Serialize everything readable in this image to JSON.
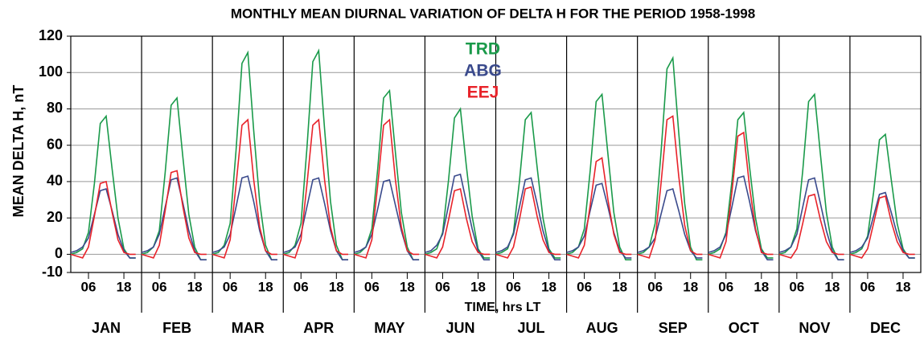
{
  "chart_data": {
    "type": "line",
    "title": "MONTHLY MEAN DIURNAL VARIATION OF DELTA H FOR THE PERIOD 1958-1998",
    "y_label": "MEAN DELTA H, nT",
    "x_label": "TIME, hrs LT",
    "panels": [
      "JAN",
      "FEB",
      "MAR",
      "APR",
      "MAY",
      "JUN",
      "JUL",
      "AUG",
      "SEP",
      "OCT",
      "NOV",
      "DEC"
    ],
    "hours": [
      0,
      2,
      4,
      6,
      8,
      10,
      12,
      14,
      16,
      18,
      20,
      22
    ],
    "xlim": [
      0,
      24
    ],
    "xticks": [
      {
        "value": 6,
        "label": "06"
      },
      18
    ],
    "ylim": [
      -10,
      120
    ],
    "yticks": [
      -10,
      0,
      20,
      40,
      60,
      80,
      100,
      120
    ],
    "grid": true,
    "legend": "top-center",
    "series": [
      {
        "name": "TRD",
        "color": "#1a9a4a",
        "values": [
          [
            0,
            1,
            3,
            12,
            39,
            72,
            76,
            47,
            20,
            3,
            -2,
            -2
          ],
          [
            0,
            1,
            4,
            13,
            45,
            82,
            86,
            53,
            22,
            4,
            -3,
            -3
          ],
          [
            0,
            1,
            5,
            17,
            57,
            105,
            111,
            68,
            29,
            5,
            -3,
            -3
          ],
          [
            0,
            1,
            5,
            17,
            58,
            106,
            112,
            69,
            29,
            5,
            -3,
            -3
          ],
          [
            0,
            1,
            4,
            14,
            47,
            86,
            90,
            56,
            23,
            4,
            -3,
            -3
          ],
          [
            0,
            1,
            3,
            12,
            41,
            75,
            80,
            49,
            21,
            3,
            -2,
            -2
          ],
          [
            0,
            1,
            3,
            12,
            40,
            74,
            78,
            48,
            20,
            3,
            -2,
            -2
          ],
          [
            0,
            1,
            4,
            14,
            46,
            84,
            88,
            55,
            23,
            4,
            -3,
            -3
          ],
          [
            0,
            1,
            4,
            17,
            56,
            102,
            108,
            67,
            28,
            4,
            -3,
            -3
          ],
          [
            0,
            1,
            3,
            12,
            40,
            74,
            78,
            48,
            20,
            3,
            -2,
            -2
          ],
          [
            0,
            1,
            4,
            14,
            46,
            84,
            88,
            55,
            23,
            4,
            -3,
            -3
          ],
          [
            0,
            1,
            3,
            10,
            34,
            63,
            66,
            41,
            17,
            3,
            -2,
            -2
          ]
        ]
      },
      {
        "name": "ABG",
        "color": "#3a4a8c",
        "values": [
          [
            1,
            2,
            4,
            9,
            22,
            35,
            36,
            24,
            11,
            2,
            -2,
            -2
          ],
          [
            1,
            2,
            4,
            11,
            26,
            41,
            42,
            28,
            13,
            2,
            -3,
            -3
          ],
          [
            1,
            2,
            4,
            11,
            26,
            42,
            43,
            29,
            13,
            2,
            -3,
            -3
          ],
          [
            1,
            2,
            4,
            11,
            26,
            41,
            42,
            28,
            13,
            2,
            -3,
            -3
          ],
          [
            1,
            2,
            4,
            11,
            25,
            40,
            41,
            27,
            13,
            2,
            -3,
            -3
          ],
          [
            1,
            2,
            5,
            11,
            27,
            43,
            44,
            29,
            14,
            2,
            -3,
            -3
          ],
          [
            1,
            2,
            4,
            11,
            26,
            41,
            42,
            28,
            13,
            2,
            -3,
            -3
          ],
          [
            1,
            2,
            4,
            10,
            24,
            38,
            39,
            26,
            12,
            2,
            -2,
            -2
          ],
          [
            1,
            2,
            4,
            9,
            22,
            35,
            36,
            24,
            11,
            2,
            -2,
            -2
          ],
          [
            1,
            2,
            4,
            11,
            26,
            42,
            43,
            29,
            13,
            2,
            -3,
            -3
          ],
          [
            1,
            2,
            4,
            11,
            26,
            41,
            42,
            28,
            13,
            2,
            -3,
            -3
          ],
          [
            1,
            2,
            4,
            9,
            21,
            33,
            34,
            23,
            11,
            2,
            -2,
            -2
          ]
        ]
      },
      {
        "name": "EEJ",
        "color": "#e8232a",
        "values": [
          [
            0,
            -1,
            -2,
            4,
            21,
            39,
            40,
            23,
            8,
            1,
            0,
            0
          ],
          [
            0,
            -1,
            -2,
            5,
            24,
            45,
            46,
            26,
            9,
            1,
            0,
            0
          ],
          [
            0,
            -1,
            -2,
            8,
            38,
            71,
            74,
            41,
            15,
            2,
            0,
            0
          ],
          [
            0,
            -1,
            -2,
            8,
            38,
            71,
            74,
            41,
            15,
            2,
            0,
            0
          ],
          [
            0,
            -1,
            -2,
            8,
            38,
            71,
            74,
            41,
            15,
            2,
            0,
            0
          ],
          [
            0,
            -1,
            -2,
            4,
            19,
            35,
            36,
            20,
            7,
            1,
            0,
            0
          ],
          [
            0,
            -1,
            -2,
            4,
            19,
            36,
            37,
            21,
            8,
            1,
            0,
            0
          ],
          [
            0,
            -1,
            -2,
            5,
            27,
            51,
            53,
            30,
            11,
            1,
            0,
            0
          ],
          [
            0,
            -1,
            -2,
            8,
            39,
            74,
            76,
            43,
            16,
            2,
            0,
            0
          ],
          [
            0,
            -1,
            -2,
            7,
            34,
            65,
            67,
            37,
            14,
            1,
            0,
            0
          ],
          [
            0,
            -1,
            -2,
            3,
            17,
            32,
            33,
            19,
            7,
            1,
            0,
            0
          ],
          [
            0,
            -1,
            -2,
            3,
            17,
            31,
            32,
            18,
            7,
            1,
            0,
            0
          ]
        ]
      }
    ]
  }
}
